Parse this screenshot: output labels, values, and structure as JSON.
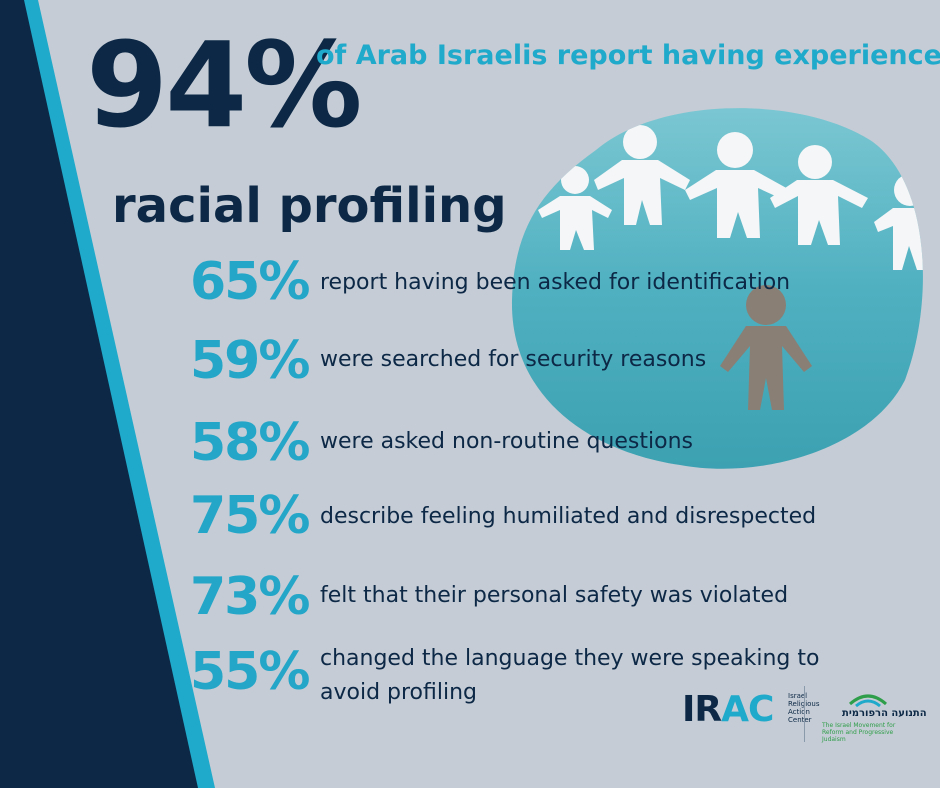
{
  "headline": {
    "big_number": "94%",
    "line1": "of Arab Israelis report having experienced",
    "line2": "racial profiling"
  },
  "stats": [
    {
      "percent": "65%",
      "text": "report having been asked for identification"
    },
    {
      "percent": "59%",
      "text": "were searched for security reasons"
    },
    {
      "percent": "58%",
      "text": "were asked non-routine questions"
    },
    {
      "percent": "75%",
      "text": "describe feeling humiliated and disrespected"
    },
    {
      "percent": "73%",
      "text": "felt that their personal safety was violated"
    },
    {
      "percent": "55%",
      "text": "changed the language they were speaking to",
      "text2": "avoid profiling"
    }
  ],
  "logos": {
    "irac_main": "IR",
    "irac_accent": "AC",
    "irac_small": "Israel Religious Action Center",
    "hebrew_name": "התנועה הרפורמית",
    "hebrew_sub": "The Israel Movement for Reform and Progressive Judaism"
  },
  "colors": {
    "background": "#c5ccd5",
    "navy": "#0c2846",
    "accent": "#1fa9ca",
    "photo_teal": "#5fb6c4"
  }
}
